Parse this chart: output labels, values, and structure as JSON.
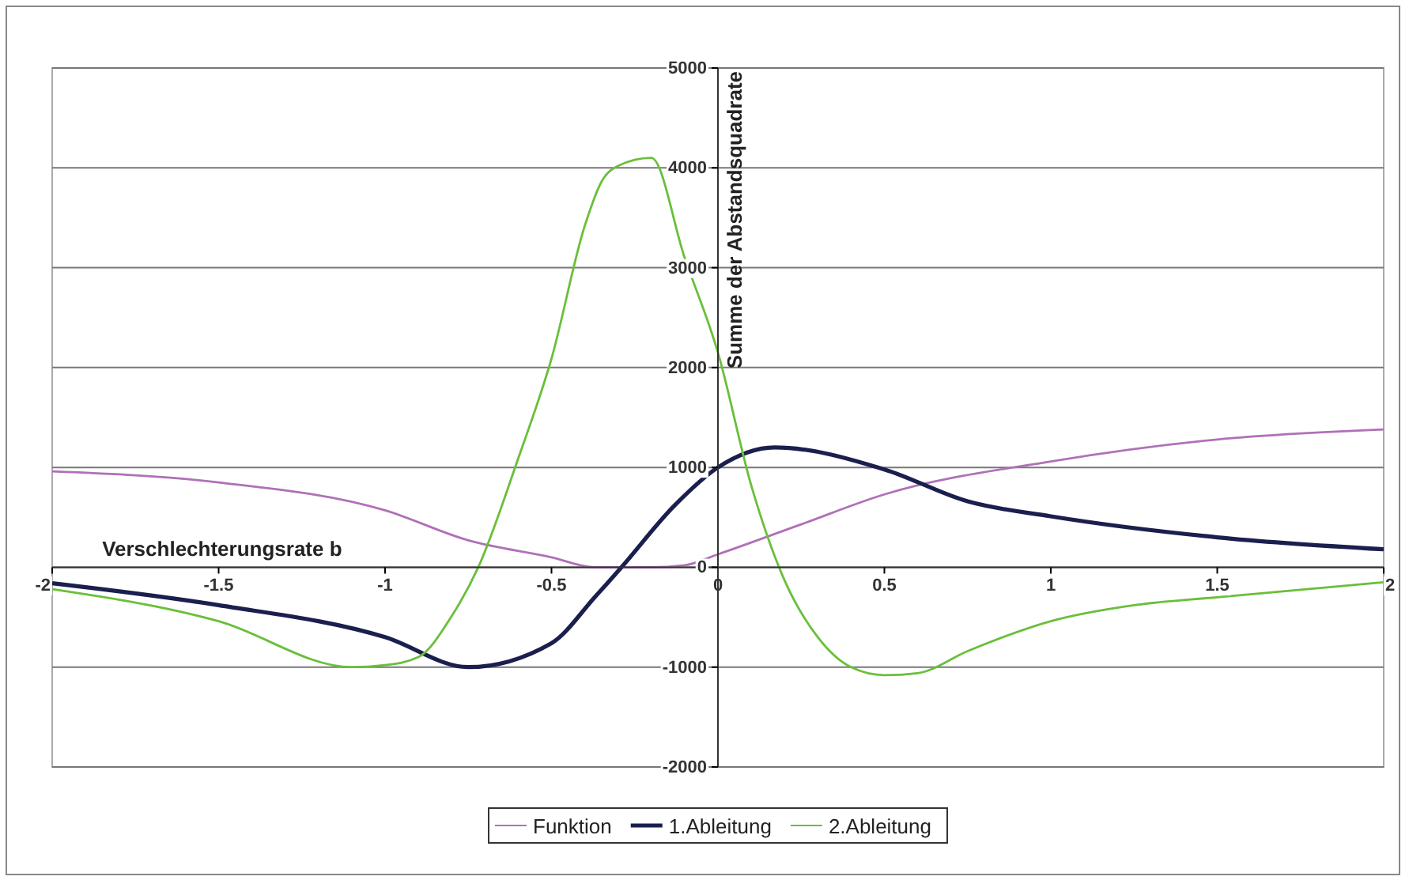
{
  "chart_data": {
    "type": "line",
    "xlabel": "Verschlechterungsrate b",
    "ylabel": "Summe der Abstandsquadrate",
    "xlim": [
      -2,
      2
    ],
    "ylim": [
      -2000,
      5000
    ],
    "xticks": [
      -2,
      -1.5,
      -1,
      -0.5,
      0,
      0.5,
      1,
      1.5,
      2
    ],
    "yticks": [
      -2000,
      -1000,
      0,
      1000,
      2000,
      3000,
      4000,
      5000
    ],
    "grid": "y",
    "legend": "bottom",
    "line_style": "solid",
    "marker": "none",
    "series": [
      {
        "name": "Funktion",
        "color": "#b070b8",
        "x": [
          -2,
          -1.5,
          -1,
          -0.75,
          -0.5,
          -0.37,
          -0.2,
          -0.1,
          0,
          0.25,
          0.5,
          1,
          1.5,
          2
        ],
        "values": [
          960,
          850,
          570,
          270,
          100,
          0,
          0,
          20,
          130,
          430,
          730,
          1060,
          1280,
          1380
        ]
      },
      {
        "name": "1.Ableitung",
        "color": "#1a1f4e",
        "x": [
          -2,
          -1.5,
          -1,
          -0.75,
          -0.5,
          -0.37,
          -0.29,
          -0.13,
          0,
          0.17,
          0.5,
          0.75,
          1,
          1.5,
          2
        ],
        "values": [
          -160,
          -380,
          -700,
          -1000,
          -760,
          -300,
          0,
          620,
          1000,
          1200,
          980,
          660,
          510,
          300,
          180
        ]
      },
      {
        "name": "2.Ableitung",
        "color": "#6abf3a",
        "x": [
          -2,
          -1.5,
          -1.1,
          -1,
          -0.9,
          -0.8,
          -0.72,
          -0.6,
          -0.5,
          -0.4,
          -0.35,
          -0.3,
          -0.2,
          -0.1,
          0,
          0.1,
          0.2,
          0.3,
          0.4,
          0.5,
          0.6,
          0.75,
          1,
          1.25,
          1.5,
          2
        ],
        "values": [
          -220,
          -540,
          -1000,
          -980,
          -900,
          -490,
          0,
          1090,
          2090,
          3420,
          3860,
          4020,
          4100,
          3100,
          2150,
          820,
          -130,
          -700,
          -1000,
          -1080,
          -1060,
          -840,
          -540,
          -380,
          -300,
          -150
        ]
      }
    ]
  }
}
